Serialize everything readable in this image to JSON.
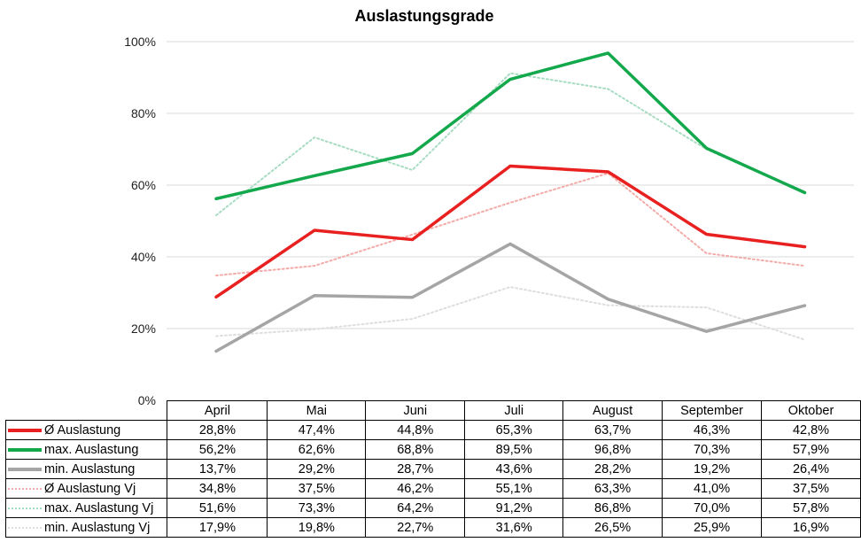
{
  "chart_data": {
    "type": "line",
    "title": "Auslastungsgrade",
    "categories": [
      "April",
      "Mai",
      "Juni",
      "Juli",
      "August",
      "September",
      "Oktober"
    ],
    "ylim": [
      0,
      100
    ],
    "yticks": [
      "0%",
      "20%",
      "40%",
      "60%",
      "80%",
      "100%"
    ],
    "ytick_values": [
      0,
      20,
      40,
      60,
      80,
      100
    ],
    "grid": true,
    "legend_placement": "data table",
    "series": [
      {
        "name": "Ø Auslastung",
        "color": "#e8201f",
        "style": "solid",
        "values": [
          28.8,
          47.4,
          44.8,
          65.3,
          63.7,
          46.3,
          42.8
        ],
        "labels": [
          "28,8%",
          "47,4%",
          "44,8%",
          "65,3%",
          "63,7%",
          "46,3%",
          "42,8%"
        ]
      },
      {
        "name": "max. Auslastung",
        "color": "#13a84b",
        "style": "solid",
        "values": [
          56.2,
          62.6,
          68.8,
          89.5,
          96.8,
          70.3,
          57.9
        ],
        "labels": [
          "56,2%",
          "62,6%",
          "68,8%",
          "89,5%",
          "96,8%",
          "70,3%",
          "57,9%"
        ]
      },
      {
        "name": "min. Auslastung",
        "color": "#a5a5a5",
        "style": "solid",
        "values": [
          13.7,
          29.2,
          28.7,
          43.6,
          28.2,
          19.2,
          26.4
        ],
        "labels": [
          "13,7%",
          "29,2%",
          "28,7%",
          "43,6%",
          "28,2%",
          "19,2%",
          "26,4%"
        ]
      },
      {
        "name": "Ø Auslastung Vj",
        "color": "#f4aaa7",
        "style": "dotted",
        "values": [
          34.8,
          37.5,
          46.2,
          55.1,
          63.3,
          41.0,
          37.5
        ],
        "labels": [
          "34,8%",
          "37,5%",
          "46,2%",
          "55,1%",
          "63,3%",
          "41,0%",
          "37,5%"
        ]
      },
      {
        "name": "max. Auslastung Vj",
        "color": "#a8dcc2",
        "style": "dotted",
        "values": [
          51.6,
          73.3,
          64.2,
          91.2,
          86.8,
          70.0,
          57.8
        ],
        "labels": [
          "51,6%",
          "73,3%",
          "64,2%",
          "91,2%",
          "86,8%",
          "70,0%",
          "57,8%"
        ]
      },
      {
        "name": "min. Auslastung Vj",
        "color": "#dedede",
        "style": "dotted",
        "values": [
          17.9,
          19.8,
          22.7,
          31.6,
          26.5,
          25.9,
          16.9
        ],
        "labels": [
          "17,9%",
          "19,8%",
          "22,7%",
          "31,6%",
          "26,5%",
          "25,9%",
          "16,9%"
        ]
      }
    ]
  }
}
